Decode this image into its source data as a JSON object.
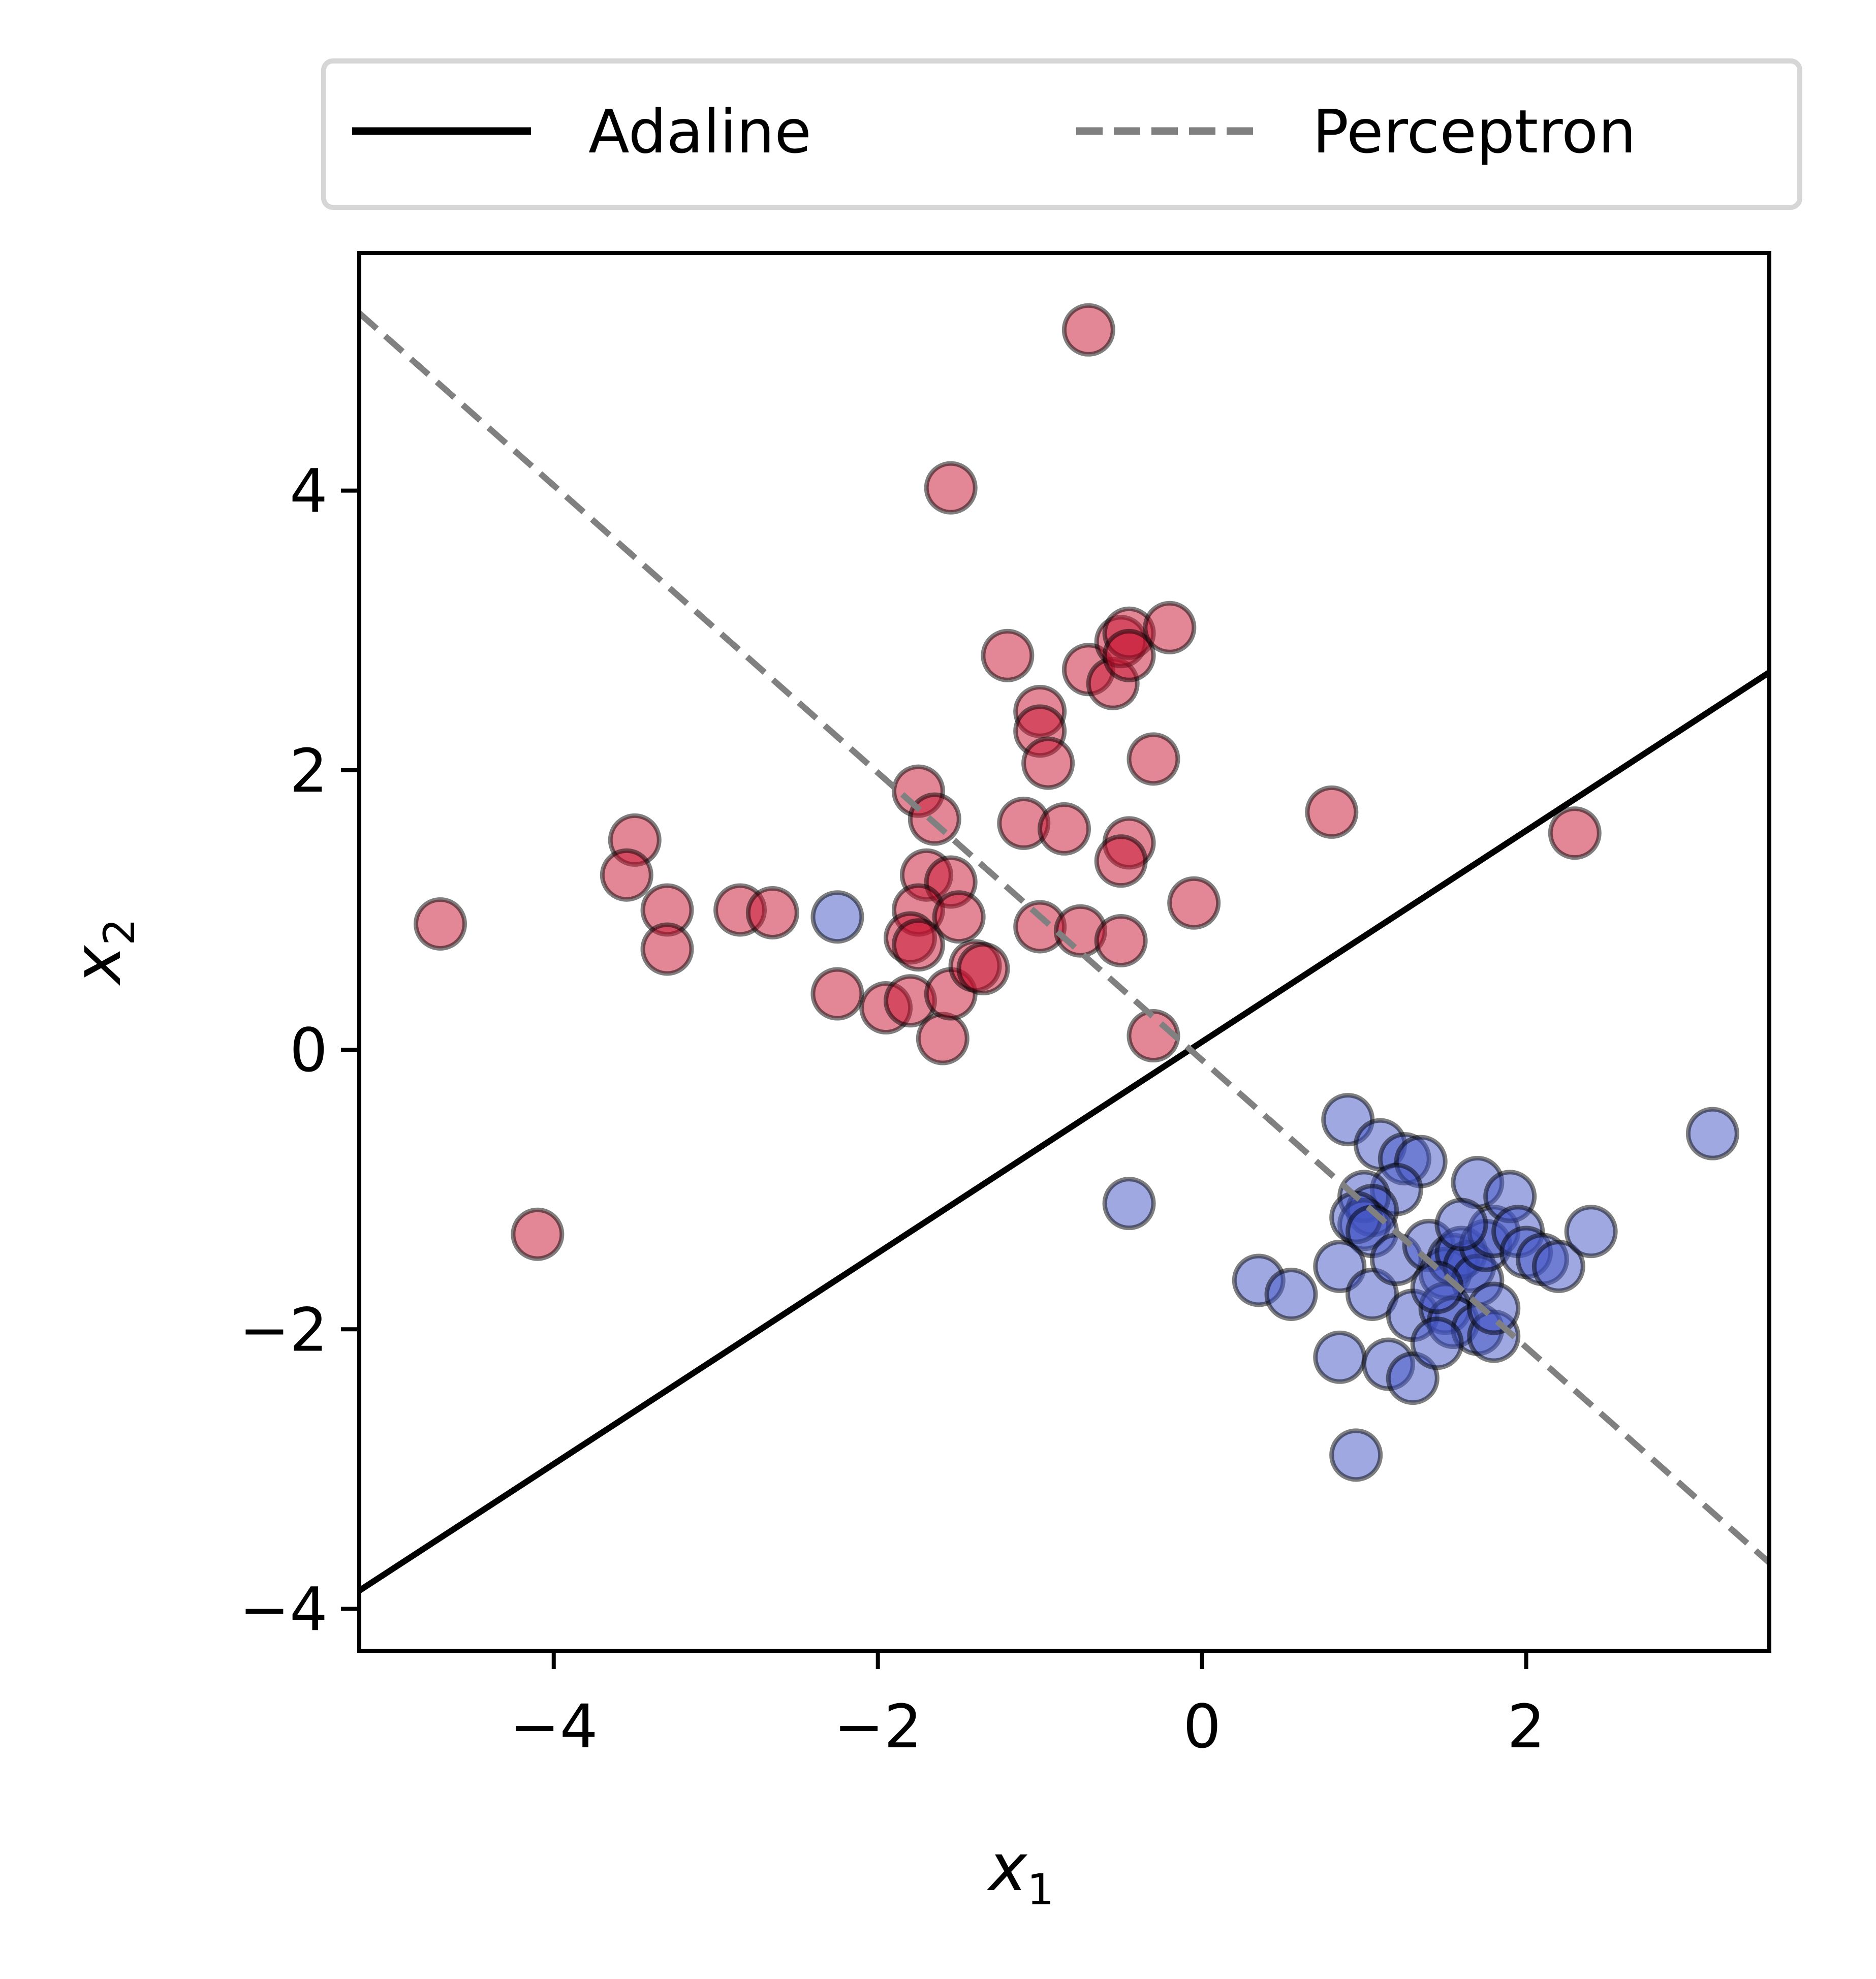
{
  "chart_data": {
    "type": "scatter",
    "title": "",
    "xlabel": "x",
    "xlabel_sub": "1",
    "ylabel": "x",
    "ylabel_sub": "2",
    "xlim": [
      -5.2,
      3.5
    ],
    "ylim": [
      -4.3,
      5.7
    ],
    "xticks": [
      -4,
      -2,
      0,
      2
    ],
    "yticks": [
      -4,
      -2,
      0,
      2,
      4
    ],
    "xtick_labels": [
      "−4",
      "−2",
      "0",
      "2"
    ],
    "ytick_labels": [
      "−4",
      "−2",
      "0",
      "2",
      "4"
    ],
    "grid": false,
    "legend_placement": "top, above plot",
    "lines": [
      {
        "name": "Adaline",
        "style": "solid",
        "color": "#000000",
        "points": [
          [
            -5.2,
            -3.87
          ],
          [
            3.5,
            2.7
          ]
        ]
      },
      {
        "name": "Perceptron",
        "style": "dashed",
        "color": "#808080",
        "points": [
          [
            -5.2,
            5.27
          ],
          [
            3.5,
            -3.67
          ]
        ]
      }
    ],
    "series": [
      {
        "class": "red",
        "color": "#c8102e",
        "points": [
          [
            -0.7,
            5.15
          ],
          [
            -1.55,
            4.02
          ],
          [
            -4.7,
            0.9
          ],
          [
            -4.1,
            -1.32
          ],
          [
            -3.5,
            1.5
          ],
          [
            -3.55,
            1.25
          ],
          [
            -3.3,
            1.0
          ],
          [
            -3.3,
            0.72
          ],
          [
            -2.85,
            1.0
          ],
          [
            -2.65,
            0.98
          ],
          [
            -2.25,
            0.4
          ],
          [
            -1.95,
            0.3
          ],
          [
            -1.8,
            0.35
          ],
          [
            -1.6,
            0.08
          ],
          [
            -1.55,
            0.4
          ],
          [
            -1.75,
            1.85
          ],
          [
            -1.65,
            1.65
          ],
          [
            -1.7,
            1.25
          ],
          [
            -1.55,
            1.2
          ],
          [
            -1.75,
            1.0
          ],
          [
            -1.8,
            0.8
          ],
          [
            -1.75,
            0.75
          ],
          [
            -1.5,
            0.95
          ],
          [
            -1.4,
            0.6
          ],
          [
            -1.35,
            0.58
          ],
          [
            -1.2,
            2.82
          ],
          [
            -1.0,
            2.42
          ],
          [
            -1.0,
            2.28
          ],
          [
            -0.95,
            2.05
          ],
          [
            -1.1,
            1.62
          ],
          [
            -0.85,
            1.58
          ],
          [
            -1.0,
            0.88
          ],
          [
            -0.75,
            0.85
          ],
          [
            -0.7,
            2.72
          ],
          [
            -0.55,
            2.62
          ],
          [
            -0.5,
            2.92
          ],
          [
            -0.45,
            2.98
          ],
          [
            -0.45,
            2.82
          ],
          [
            -0.2,
            3.02
          ],
          [
            -0.3,
            2.08
          ],
          [
            -0.45,
            1.48
          ],
          [
            -0.5,
            1.35
          ],
          [
            -0.5,
            0.78
          ],
          [
            -0.3,
            0.1
          ],
          [
            -0.05,
            1.05
          ],
          [
            0.8,
            1.7
          ],
          [
            2.3,
            1.55
          ]
        ]
      },
      {
        "class": "blue",
        "color": "#3f51c4",
        "points": [
          [
            -2.25,
            0.95
          ],
          [
            -0.45,
            -1.1
          ],
          [
            3.15,
            -0.6
          ],
          [
            0.35,
            -1.65
          ],
          [
            0.55,
            -1.75
          ],
          [
            0.9,
            -0.5
          ],
          [
            1.1,
            -0.68
          ],
          [
            1.25,
            -0.78
          ],
          [
            1.35,
            -0.8
          ],
          [
            1.2,
            -1.0
          ],
          [
            1.0,
            -1.05
          ],
          [
            1.05,
            -1.15
          ],
          [
            1.0,
            -1.25
          ],
          [
            0.95,
            -1.2
          ],
          [
            1.05,
            -1.3
          ],
          [
            0.85,
            -1.55
          ],
          [
            1.05,
            -1.75
          ],
          [
            1.2,
            -1.5
          ],
          [
            1.4,
            -1.4
          ],
          [
            1.5,
            -1.6
          ],
          [
            1.55,
            -1.5
          ],
          [
            1.6,
            -1.45
          ],
          [
            1.65,
            -1.55
          ],
          [
            1.7,
            -1.65
          ],
          [
            1.75,
            -1.4
          ],
          [
            1.8,
            -1.3
          ],
          [
            1.7,
            -0.95
          ],
          [
            1.9,
            -1.05
          ],
          [
            1.95,
            -1.3
          ],
          [
            2.0,
            -1.45
          ],
          [
            2.1,
            -1.5
          ],
          [
            2.2,
            -1.55
          ],
          [
            2.4,
            -1.3
          ],
          [
            1.3,
            -1.9
          ],
          [
            1.5,
            -1.85
          ],
          [
            1.55,
            -1.95
          ],
          [
            1.7,
            -2.0
          ],
          [
            1.8,
            -2.05
          ],
          [
            1.8,
            -1.85
          ],
          [
            0.85,
            -2.2
          ],
          [
            1.15,
            -2.25
          ],
          [
            1.3,
            -2.35
          ],
          [
            1.45,
            -2.1
          ],
          [
            0.95,
            -2.9
          ],
          [
            1.6,
            -1.25
          ],
          [
            1.45,
            -1.7
          ]
        ]
      }
    ]
  }
}
